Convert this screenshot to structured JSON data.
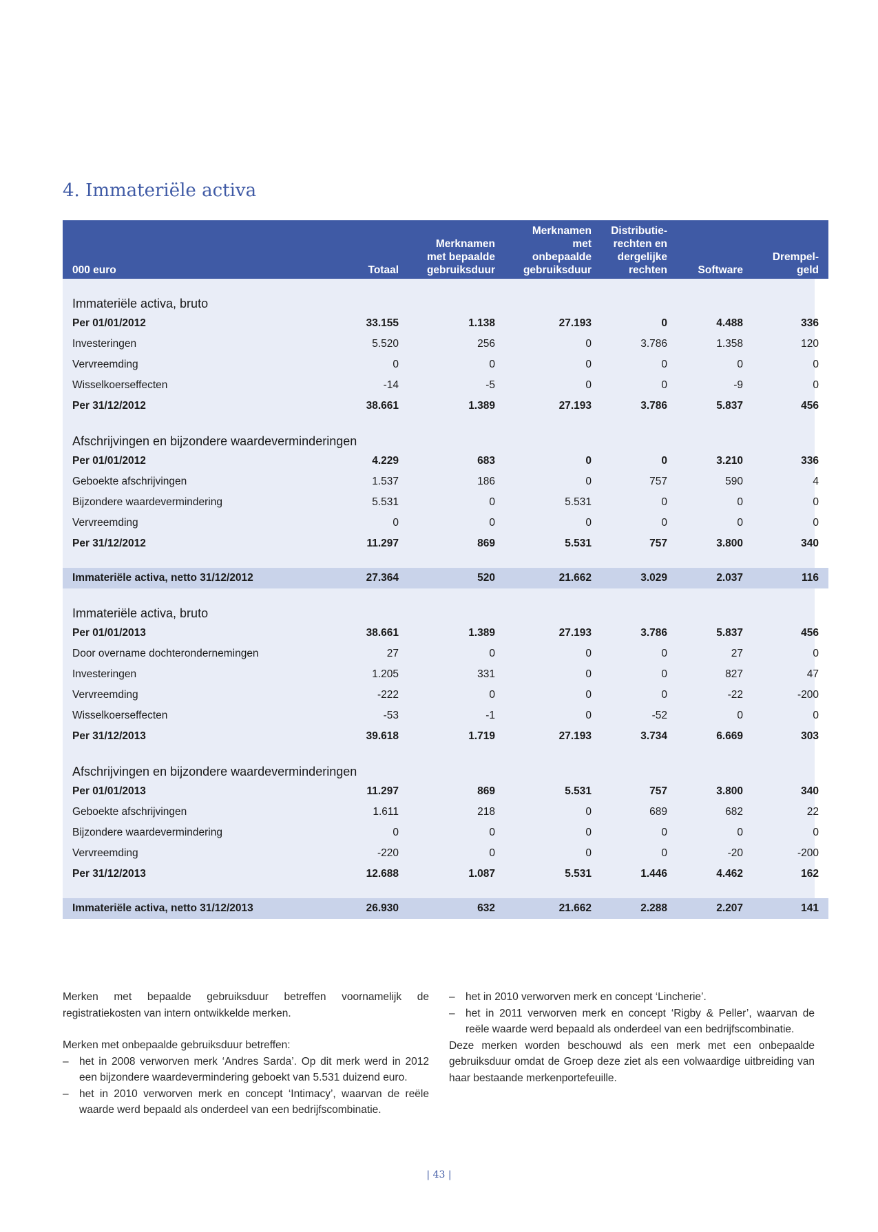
{
  "title": "4.  Immateriële activa",
  "table": {
    "headers": [
      "000 euro",
      "Totaal",
      "Merknamen met bepaalde gebruiksduur",
      "Merknamen met onbepaalde gebruiksduur",
      "Distributie-rechten en dergelijke rechten",
      "Software",
      "Drempel-geld"
    ],
    "header_lines": [
      [
        "000 euro"
      ],
      [
        "Totaal"
      ],
      [
        "Merknamen",
        "met bepaalde",
        "gebruiksduur"
      ],
      [
        "Merknamen",
        "met",
        "onbepaalde",
        "gebruiksduur"
      ],
      [
        "Distributie-",
        "rechten en",
        "dergelijke",
        "rechten"
      ],
      [
        "Software"
      ],
      [
        "Drempel-",
        "geld"
      ]
    ],
    "rows": [
      {
        "kind": "section",
        "cells": [
          "Immateriële activa, bruto"
        ]
      },
      {
        "kind": "bold",
        "cells": [
          "Per 01/01/2012",
          "33.155",
          "1.138",
          "27.193",
          "0",
          "4.488",
          "336"
        ]
      },
      {
        "kind": "normal",
        "cells": [
          "Investeringen",
          "5.520",
          "256",
          "0",
          "3.786",
          "1.358",
          "120"
        ]
      },
      {
        "kind": "normal",
        "cells": [
          "Vervreemding",
          "0",
          "0",
          "0",
          "0",
          "0",
          "0"
        ]
      },
      {
        "kind": "normal",
        "cells": [
          "Wisselkoerseffecten",
          "-14",
          "-5",
          "0",
          "0",
          "-9",
          "0"
        ]
      },
      {
        "kind": "bold",
        "cells": [
          "Per 31/12/2012",
          "38.661",
          "1.389",
          "27.193",
          "3.786",
          "5.837",
          "456"
        ]
      },
      {
        "kind": "section",
        "cells": [
          "Afschrijvingen en bijzondere waardeverminderingen"
        ]
      },
      {
        "kind": "bold",
        "cells": [
          "Per 01/01/2012",
          "4.229",
          "683",
          "0",
          "0",
          "3.210",
          "336"
        ]
      },
      {
        "kind": "normal",
        "cells": [
          "Geboekte afschrijvingen",
          "1.537",
          "186",
          "0",
          "757",
          "590",
          "4"
        ]
      },
      {
        "kind": "normal",
        "cells": [
          "Bijzondere waardevermindering",
          "5.531",
          "0",
          "5.531",
          "0",
          "0",
          "0"
        ]
      },
      {
        "kind": "normal",
        "cells": [
          "Vervreemding",
          "0",
          "0",
          "0",
          "0",
          "0",
          "0"
        ]
      },
      {
        "kind": "bold",
        "cells": [
          "Per 31/12/2012",
          "11.297",
          "869",
          "5.531",
          "757",
          "3.800",
          "340"
        ]
      },
      {
        "kind": "spacer",
        "cells": []
      },
      {
        "kind": "netto",
        "cells": [
          "Immateriële activa, netto 31/12/2012",
          "27.364",
          "520",
          "21.662",
          "3.029",
          "2.037",
          "116"
        ]
      },
      {
        "kind": "section",
        "cells": [
          "Immateriële activa, bruto"
        ]
      },
      {
        "kind": "bold",
        "cells": [
          "Per 01/01/2013",
          "38.661",
          "1.389",
          "27.193",
          "3.786",
          "5.837",
          "456"
        ]
      },
      {
        "kind": "normal",
        "cells": [
          "Door overname dochterondernemingen",
          "27",
          "0",
          "0",
          "0",
          "27",
          "0"
        ]
      },
      {
        "kind": "normal",
        "cells": [
          "Investeringen",
          "1.205",
          "331",
          "0",
          "0",
          "827",
          "47"
        ]
      },
      {
        "kind": "normal",
        "cells": [
          "Vervreemding",
          "-222",
          "0",
          "0",
          "0",
          "-22",
          "-200"
        ]
      },
      {
        "kind": "normal",
        "cells": [
          "Wisselkoerseffecten",
          "-53",
          "-1",
          "0",
          "-52",
          "0",
          "0"
        ]
      },
      {
        "kind": "bold",
        "cells": [
          "Per 31/12/2013",
          "39.618",
          "1.719",
          "27.193",
          "3.734",
          "6.669",
          "303"
        ]
      },
      {
        "kind": "section",
        "cells": [
          "Afschrijvingen en bijzondere waardeverminderingen"
        ]
      },
      {
        "kind": "bold",
        "cells": [
          "Per 01/01/2013",
          "11.297",
          "869",
          "5.531",
          "757",
          "3.800",
          "340"
        ]
      },
      {
        "kind": "normal",
        "cells": [
          "Geboekte afschrijvingen",
          "1.611",
          "218",
          "0",
          "689",
          "682",
          "22"
        ]
      },
      {
        "kind": "normal",
        "cells": [
          "Bijzondere waardevermindering",
          "0",
          "0",
          "0",
          "0",
          "0",
          "0"
        ]
      },
      {
        "kind": "normal",
        "cells": [
          "Vervreemding",
          "-220",
          "0",
          "0",
          "0",
          "-20",
          "-200"
        ]
      },
      {
        "kind": "bold",
        "cells": [
          "Per 31/12/2013",
          "12.688",
          "1.087",
          "5.531",
          "1.446",
          "4.462",
          "162"
        ]
      },
      {
        "kind": "spacer",
        "cells": []
      },
      {
        "kind": "netto",
        "cells": [
          "Immateriële activa, netto 31/12/2013",
          "26.930",
          "632",
          "21.662",
          "2.288",
          "2.207",
          "141"
        ]
      }
    ]
  },
  "notes": {
    "left": {
      "p1": "Merken met bepaalde gebruiksduur betreffen voornamelijk de registratiekosten van intern ontwikkelde merken.",
      "p2": "Merken met onbepaalde gebruiksduur betreffen:",
      "bullets": [
        "het in 2008 verworven merk ‘Andres Sarda’. Op dit merk werd in 2012 een bijzondere waardevermindering geboekt van 5.531 duizend euro.",
        "het in 2010 verworven merk en concept ‘Intimacy’, waarvan de reële waarde werd bepaald als onderdeel van een bedrijfscombinatie."
      ]
    },
    "right": {
      "bullets": [
        "het in 2010 verworven merk en concept ‘Lincherie’.",
        "het in 2011 verworven merk en concept ‘Rigby & Peller’, waarvan de reële waarde werd bepaald als onderdeel van een bedrijfscombinatie."
      ],
      "p1": "Deze merken worden beschouwd als een merk met een onbepaalde gebruiksduur omdat de Groep deze ziet als een volwaardige uitbreiding van haar bestaande merkenportefeuille."
    },
    "dash": "–"
  },
  "page_number": "43"
}
